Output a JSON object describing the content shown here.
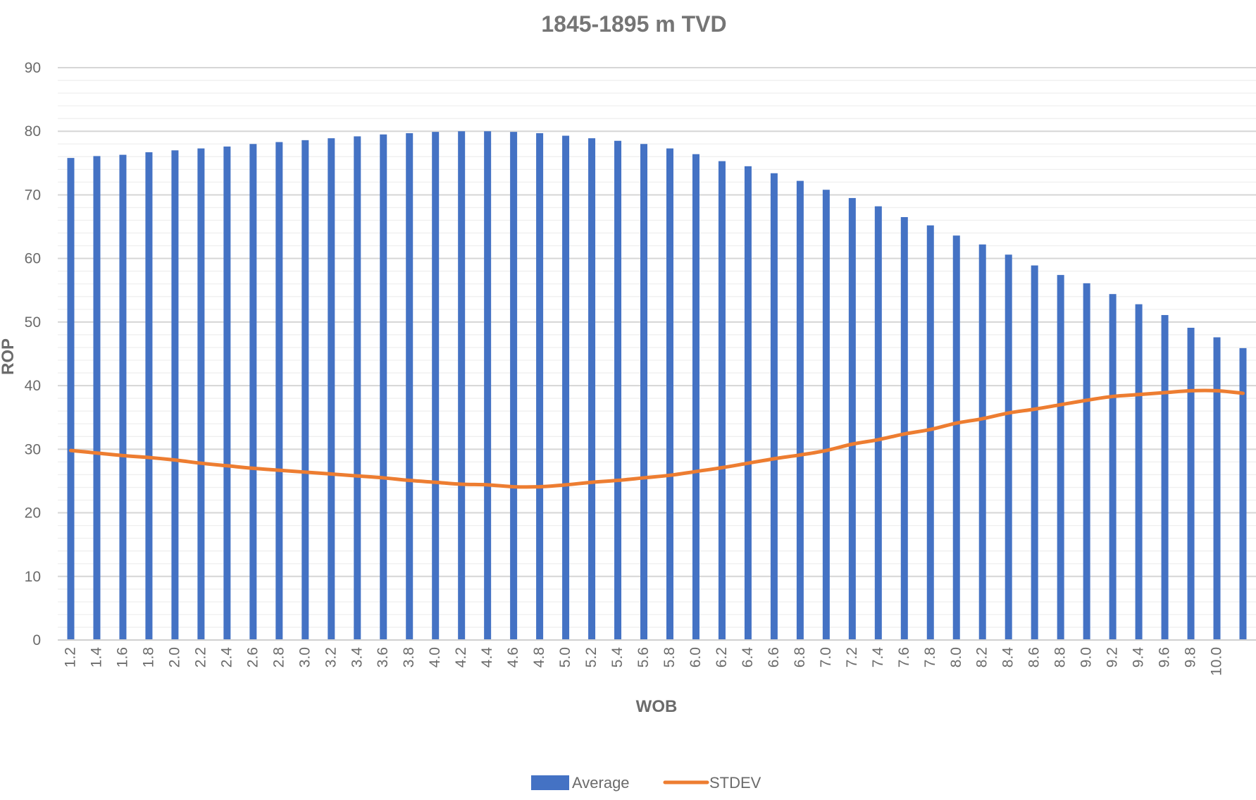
{
  "chart_data": {
    "type": "bar",
    "title": "1845-1895 m TVD",
    "xlabel": "WOB",
    "ylabel": "ROP",
    "ylim": [
      0,
      90
    ],
    "yticks": [
      0,
      10,
      20,
      30,
      40,
      50,
      60,
      70,
      80,
      90
    ],
    "grid": true,
    "legend_position": "bottom",
    "categories": [
      "1.2",
      "1.4",
      "1.6",
      "1.8",
      "2.0",
      "2.2",
      "2.4",
      "2.6",
      "2.8",
      "3.0",
      "3.2",
      "3.4",
      "3.6",
      "3.8",
      "4.0",
      "4.2",
      "4.4",
      "4.6",
      "4.8",
      "5.0",
      "5.2",
      "5.4",
      "5.6",
      "5.8",
      "6.0",
      "6.2",
      "6.4",
      "6.6",
      "6.8",
      "7.0",
      "7.2",
      "7.4",
      "7.6",
      "7.8",
      "8.0",
      "8.2",
      "8.4",
      "8.6",
      "8.8",
      "9.0",
      "9.2",
      "9.4",
      "9.6",
      "9.8",
      "10.0",
      ""
    ],
    "series": [
      {
        "name": "Average",
        "type": "bar",
        "color": "#4472C4",
        "values": [
          75.8,
          76.1,
          76.3,
          76.7,
          77.0,
          77.3,
          77.6,
          78.0,
          78.3,
          78.6,
          78.9,
          79.2,
          79.5,
          79.7,
          79.9,
          80.0,
          80.0,
          79.9,
          79.7,
          79.3,
          78.9,
          78.5,
          78.0,
          77.3,
          76.4,
          75.3,
          74.5,
          73.4,
          72.2,
          70.8,
          69.5,
          68.2,
          66.5,
          65.2,
          63.6,
          62.2,
          60.6,
          58.9,
          57.4,
          56.1,
          54.4,
          52.8,
          51.1,
          49.1,
          47.6,
          45.9
        ]
      },
      {
        "name": "STDEV",
        "type": "line",
        "color": "#ED7D31",
        "values": [
          29.8,
          29.4,
          29.0,
          28.7,
          28.3,
          27.8,
          27.4,
          27.0,
          26.7,
          26.4,
          26.1,
          25.8,
          25.5,
          25.1,
          24.8,
          24.5,
          24.4,
          24.1,
          24.1,
          24.4,
          24.8,
          25.1,
          25.5,
          25.9,
          26.5,
          27.1,
          27.8,
          28.5,
          29.1,
          29.8,
          30.8,
          31.5,
          32.4,
          33.1,
          34.1,
          34.8,
          35.7,
          36.3,
          37.0,
          37.7,
          38.3,
          38.6,
          38.9,
          39.2,
          39.2,
          38.8
        ]
      }
    ]
  }
}
